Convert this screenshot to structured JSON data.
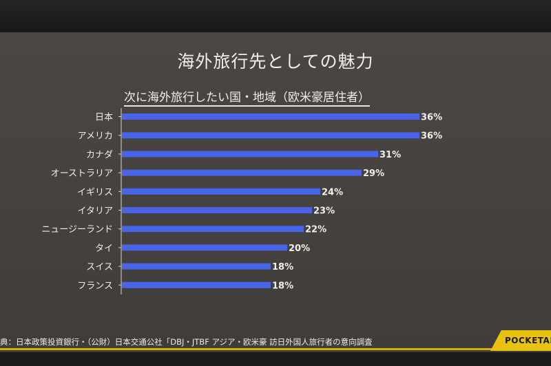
{
  "slide": {
    "title": "海外旅行先としての魅力",
    "source": "典：日本政策投資銀行・（公財）日本交通公社「DBJ・JTBF アジア・欧米豪 訪日外国人旅行者の意向調査"
  },
  "brand": {
    "name": "POCKETALK"
  },
  "colors": {
    "bar": "#4a64e8",
    "background": "#46423f",
    "brand": "#e8c20f"
  },
  "chart_data": {
    "type": "bar",
    "orientation": "horizontal",
    "title": "次に海外旅行したい国・地域（欧米豪居住者）",
    "categories": [
      "日本",
      "アメリカ",
      "カナダ",
      "オーストラリア",
      "イギリス",
      "イタリア",
      "ニュージーランド",
      "タイ",
      "スイス",
      "フランス"
    ],
    "values": [
      36,
      36,
      31,
      29,
      24,
      23,
      22,
      20,
      18,
      18
    ],
    "value_suffix": "%",
    "xlim": [
      0,
      36
    ],
    "grid": false,
    "legend": "none"
  }
}
